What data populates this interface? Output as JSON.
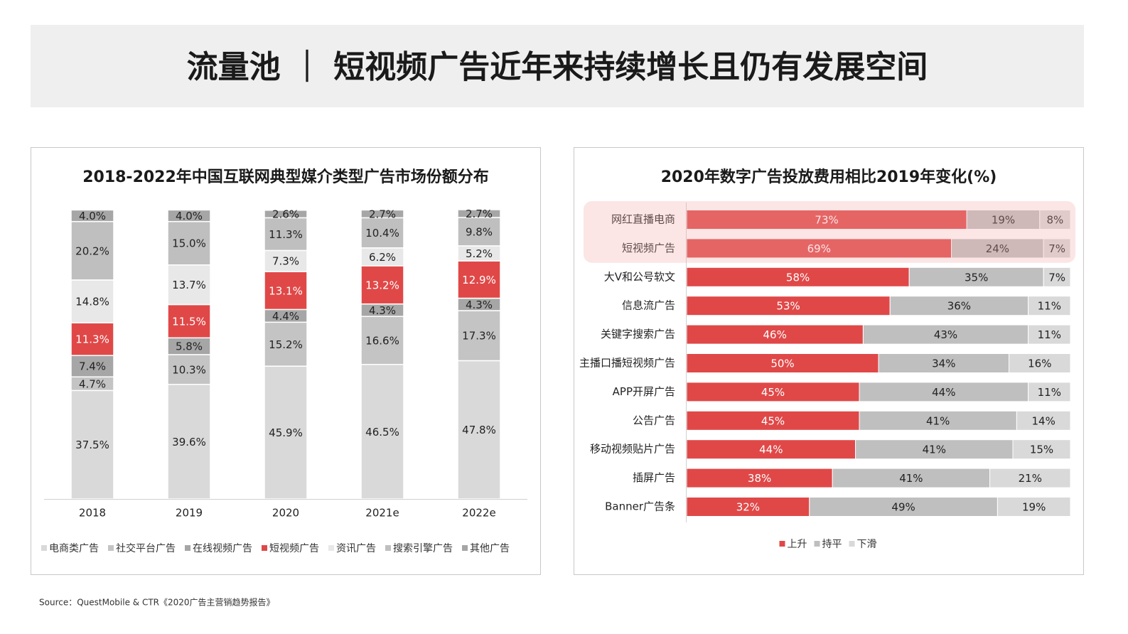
{
  "header": {
    "title": "流量池 ｜ 短视频广告近年来持续增长且仍有发展空间"
  },
  "chart_data": [
    {
      "type": "bar",
      "orientation": "vertical",
      "stacked": true,
      "legend": "bottom",
      "title": "2018-2022年中国互联网典型媒介类型广告市场份额分布",
      "categories": [
        "2018",
        "2019",
        "2020",
        "2021e",
        "2022e"
      ],
      "series": [
        {
          "name": "电商类广告",
          "color": "#d9d9d9",
          "values": [
            37.5,
            39.6,
            45.9,
            46.5,
            47.8
          ],
          "value_labels": [
            "37.5%",
            "39.6%",
            "45.9%",
            "46.5%",
            "47.8%"
          ]
        },
        {
          "name": "社交平台广告",
          "color": "#c4c4c4",
          "values": [
            4.7,
            10.3,
            15.2,
            16.6,
            17.3
          ],
          "value_labels": [
            "4.7%",
            "10.3%",
            "15.2%",
            "16.6%",
            "17.3%"
          ]
        },
        {
          "name": "在线视频广告",
          "color": "#a6a6a6",
          "values": [
            7.4,
            5.8,
            4.4,
            4.3,
            4.3
          ],
          "value_labels": [
            "7.4%",
            "5.8%",
            "4.4%",
            "4.3%",
            "4.3%"
          ]
        },
        {
          "name": "短视频广告",
          "color": "#e04848",
          "values": [
            11.3,
            11.5,
            13.1,
            13.2,
            12.9
          ],
          "value_labels": [
            "11.3%",
            "11.5%",
            "13.1%",
            "13.2%",
            "12.9%"
          ]
        },
        {
          "name": "资讯广告",
          "color": "#e8e8e8",
          "values": [
            14.8,
            13.7,
            7.3,
            6.2,
            5.2
          ],
          "value_labels": [
            "14.8%",
            "13.7%",
            "7.3%",
            "6.2%",
            "5.2%"
          ]
        },
        {
          "name": "搜索引擎广告",
          "color": "#bfbfbf",
          "values": [
            20.2,
            15.0,
            11.3,
            10.4,
            9.8
          ],
          "value_labels": [
            "20.2%",
            "15.0%",
            "11.3%",
            "10.4%",
            "9.8%"
          ]
        },
        {
          "name": "其他广告",
          "color": "#a6a6a6",
          "values": [
            4.0,
            4.0,
            2.6,
            2.7,
            2.7
          ],
          "value_labels": [
            "4.0%",
            "4.0%",
            "2.6%",
            "2.7%",
            "2.7%"
          ]
        }
      ]
    },
    {
      "type": "bar",
      "orientation": "horizontal",
      "stacked": true,
      "legend": "bottom",
      "title": "2020年数字广告投放费用相比2019年变化(%)",
      "categories": [
        "网红直播电商",
        "短视频广告",
        "大V和公号软文",
        "信息流广告",
        "关键字搜索广告",
        "主播口播短视频广告",
        "APP开屏广告",
        "公告广告",
        "移动视频贴片广告",
        "插屏广告",
        "Banner广告条"
      ],
      "series": [
        {
          "name": "上升",
          "color": "#e04848",
          "values": [
            73,
            69,
            58,
            53,
            46,
            50,
            45,
            45,
            44,
            38,
            32
          ],
          "value_labels": [
            "73%",
            "69%",
            "58%",
            "53%",
            "46%",
            "50%",
            "45%",
            "45%",
            "44%",
            "38%",
            "32%"
          ]
        },
        {
          "name": "持平",
          "color": "#bfbfbf",
          "values": [
            19,
            24,
            35,
            36,
            43,
            34,
            44,
            41,
            41,
            41,
            49
          ],
          "value_labels": [
            "19%",
            "24%",
            "35%",
            "36%",
            "43%",
            "34%",
            "44%",
            "41%",
            "41%",
            "41%",
            "49%"
          ]
        },
        {
          "name": "下滑",
          "color": "#d9d9d9",
          "values": [
            8,
            7,
            7,
            11,
            11,
            16,
            11,
            14,
            15,
            21,
            19
          ],
          "value_labels": [
            "8%",
            "7%",
            "7%",
            "11%",
            "11%",
            "16%",
            "11%",
            "14%",
            "15%",
            "21%",
            "19%"
          ]
        }
      ]
    }
  ],
  "source": "Source：QuestMobile & CTR《2020广告主营销趋势报告》"
}
